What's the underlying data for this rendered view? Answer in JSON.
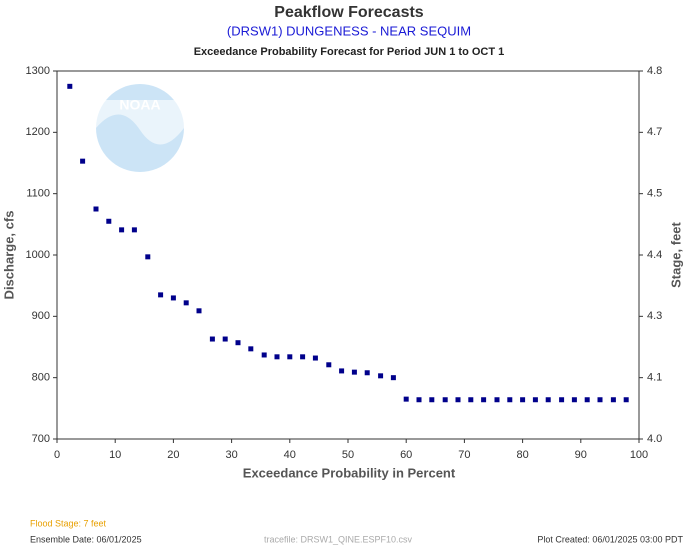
{
  "chart_data": {
    "type": "scatter",
    "title": "Peakflow Forecasts",
    "subtitle": "(DRSW1) DUNGENESS - NEAR SEQUIM",
    "period_title": "Exceedance Probability Forecast for Period JUN 1 to OCT 1",
    "xlabel": "Exceedance Probability in Percent",
    "ylabel": "Discharge, cfs",
    "y2label": "Stage, feet",
    "logo_text": "NOAA",
    "color": "#00008b",
    "x": [
      2.2,
      4.4,
      6.7,
      8.9,
      11.1,
      13.3,
      15.6,
      17.8,
      20.0,
      22.2,
      24.4,
      26.7,
      28.9,
      31.1,
      33.3,
      35.6,
      37.8,
      40.0,
      42.2,
      44.4,
      46.7,
      48.9,
      51.1,
      53.3,
      55.6,
      57.8,
      60.0,
      62.2,
      64.4,
      66.7,
      68.9,
      71.1,
      73.3,
      75.6,
      77.8,
      80.0,
      82.2,
      84.4,
      86.7,
      88.9,
      91.1,
      93.3,
      95.6,
      97.8
    ],
    "values": [
      1275,
      1153,
      1075,
      1055,
      1041,
      1041,
      997,
      935,
      930,
      922,
      909,
      863,
      863,
      857,
      847,
      837,
      834,
      834,
      834,
      832,
      821,
      811,
      809,
      808,
      803,
      800,
      765,
      764,
      764,
      764,
      764,
      764,
      764,
      764,
      764,
      764,
      764,
      764,
      764,
      764,
      764,
      764,
      764,
      764
    ],
    "xlim": [
      0,
      100
    ],
    "xticks": [
      0,
      10,
      20,
      30,
      40,
      50,
      60,
      70,
      80,
      90,
      100
    ],
    "ylim": [
      700,
      1300
    ],
    "yticks": [
      700,
      800,
      900,
      1000,
      1100,
      1200,
      1300
    ],
    "y2ticks": [
      {
        "value": 4.0,
        "label": "4.0"
      },
      4.1,
      4.3,
      4.4,
      4.5,
      4.7,
      4.8
    ],
    "y2tick_discharge": [
      700,
      800,
      900,
      1000,
      1100,
      1200,
      1300
    ],
    "footer": {
      "flood_stage": "Flood Stage: 7 feet",
      "ensemble_date": "Ensemble Date: 06/01/2025",
      "tracefile": "tracefile: DRSW1_QINE.ESPF10.csv",
      "plot_created": "Plot Created: 06/01/2025 03:00 PDT"
    }
  }
}
